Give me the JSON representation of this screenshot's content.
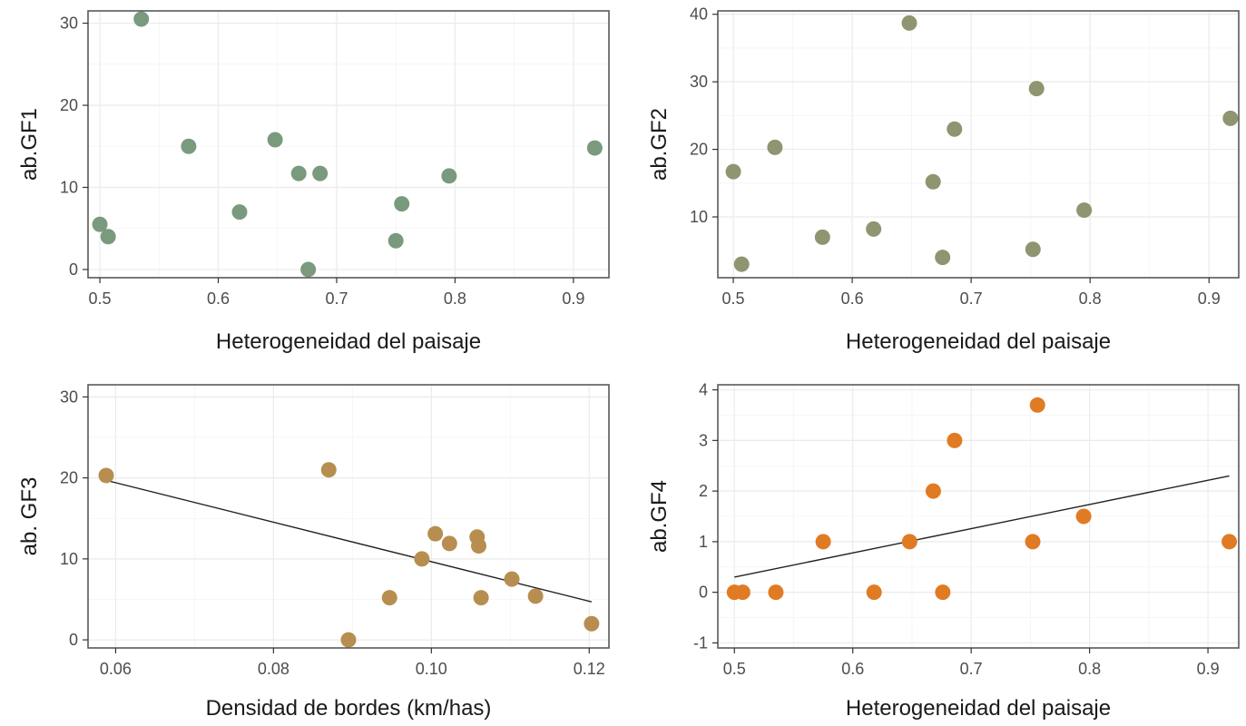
{
  "chart_data": [
    {
      "type": "scatter",
      "title": "",
      "xlabel": "Heterogeneidad del paisaje",
      "ylabel": "ab.GF1",
      "xlim": [
        0.49,
        0.93
      ],
      "ylim": [
        -1,
        31.5
      ],
      "xticks": [
        0.5,
        0.6,
        0.7,
        0.8,
        0.9
      ],
      "xtick_labels": [
        "0.5",
        "0.6",
        "0.7",
        "0.8",
        "0.9"
      ],
      "yticks": [
        0,
        10,
        20,
        30
      ],
      "ytick_labels": [
        "0",
        "10",
        "20",
        "30"
      ],
      "grid": true,
      "point_color": "#7a9a7e",
      "trend_line": null,
      "points": [
        {
          "x": 0.5,
          "y": 5.5
        },
        {
          "x": 0.507,
          "y": 4
        },
        {
          "x": 0.535,
          "y": 30.5
        },
        {
          "x": 0.575,
          "y": 15
        },
        {
          "x": 0.618,
          "y": 7
        },
        {
          "x": 0.648,
          "y": 15.8
        },
        {
          "x": 0.668,
          "y": 11.7
        },
        {
          "x": 0.676,
          "y": 0
        },
        {
          "x": 0.686,
          "y": 11.7
        },
        {
          "x": 0.75,
          "y": 3.5
        },
        {
          "x": 0.755,
          "y": 8
        },
        {
          "x": 0.795,
          "y": 11.4
        },
        {
          "x": 0.918,
          "y": 14.8
        }
      ]
    },
    {
      "type": "scatter",
      "title": "",
      "xlabel": "Heterogeneidad del paisaje",
      "ylabel": "ab.GF2",
      "xlim": [
        0.487,
        0.925
      ],
      "ylim": [
        1,
        40.5
      ],
      "xticks": [
        0.5,
        0.6,
        0.7,
        0.8,
        0.9
      ],
      "xtick_labels": [
        "0.5",
        "0.6",
        "0.7",
        "0.8",
        "0.9"
      ],
      "yticks": [
        10,
        20,
        30,
        40
      ],
      "ytick_labels": [
        "10",
        "20",
        "30",
        "40"
      ],
      "grid": true,
      "point_color": "#8e9570",
      "trend_line": null,
      "points": [
        {
          "x": 0.5,
          "y": 16.7
        },
        {
          "x": 0.507,
          "y": 3
        },
        {
          "x": 0.535,
          "y": 20.3
        },
        {
          "x": 0.575,
          "y": 7
        },
        {
          "x": 0.618,
          "y": 8.2
        },
        {
          "x": 0.648,
          "y": 38.7
        },
        {
          "x": 0.668,
          "y": 15.2
        },
        {
          "x": 0.676,
          "y": 4
        },
        {
          "x": 0.686,
          "y": 23
        },
        {
          "x": 0.752,
          "y": 5.2
        },
        {
          "x": 0.755,
          "y": 29
        },
        {
          "x": 0.795,
          "y": 11
        },
        {
          "x": 0.918,
          "y": 24.6
        }
      ]
    },
    {
      "type": "scatter",
      "title": "",
      "xlabel": "Densidad de bordes (km/has)",
      "ylabel": "ab. GF3",
      "xlim": [
        0.0565,
        0.1225
      ],
      "ylim": [
        -1,
        31.5
      ],
      "xticks": [
        0.06,
        0.08,
        0.1,
        0.12
      ],
      "xtick_labels": [
        "0.06",
        "0.08",
        "0.10",
        "0.12"
      ],
      "yticks": [
        0,
        10,
        20,
        30
      ],
      "ytick_labels": [
        "0",
        "10",
        "20",
        "30"
      ],
      "grid": true,
      "point_color": "#b78e4f",
      "trend_line": {
        "x": [
          0.0588,
          0.1203
        ],
        "y": [
          19.7,
          4.7
        ]
      },
      "points": [
        {
          "x": 0.0588,
          "y": 20.3
        },
        {
          "x": 0.087,
          "y": 21
        },
        {
          "x": 0.0895,
          "y": 0
        },
        {
          "x": 0.0947,
          "y": 5.2
        },
        {
          "x": 0.0988,
          "y": 10
        },
        {
          "x": 0.1005,
          "y": 13.1
        },
        {
          "x": 0.1023,
          "y": 11.9
        },
        {
          "x": 0.1058,
          "y": 12.7
        },
        {
          "x": 0.106,
          "y": 11.6
        },
        {
          "x": 0.1063,
          "y": 5.2
        },
        {
          "x": 0.1102,
          "y": 7.5
        },
        {
          "x": 0.1132,
          "y": 5.4
        },
        {
          "x": 0.1203,
          "y": 2
        }
      ]
    },
    {
      "type": "scatter",
      "title": "",
      "xlabel": "Heterogeneidad del paisaje",
      "ylabel": "ab.GF4",
      "xlim": [
        0.486,
        0.926
      ],
      "ylim": [
        -1.1,
        4.1
      ],
      "xticks": [
        0.5,
        0.6,
        0.7,
        0.8,
        0.9
      ],
      "xtick_labels": [
        "0.5",
        "0.6",
        "0.7",
        "0.8",
        "0.9"
      ],
      "yticks": [
        -1,
        0,
        1,
        2,
        3,
        4
      ],
      "ytick_labels": [
        "-1",
        "0",
        "1",
        "2",
        "3",
        "4"
      ],
      "grid": true,
      "point_color": "#e07b24",
      "trend_line": {
        "x": [
          0.5,
          0.918
        ],
        "y": [
          0.3,
          2.3
        ]
      },
      "points": [
        {
          "x": 0.5,
          "y": 0
        },
        {
          "x": 0.507,
          "y": 0
        },
        {
          "x": 0.535,
          "y": 0
        },
        {
          "x": 0.575,
          "y": 1
        },
        {
          "x": 0.618,
          "y": 0
        },
        {
          "x": 0.648,
          "y": 1
        },
        {
          "x": 0.668,
          "y": 2
        },
        {
          "x": 0.676,
          "y": 0
        },
        {
          "x": 0.686,
          "y": 3
        },
        {
          "x": 0.752,
          "y": 1
        },
        {
          "x": 0.756,
          "y": 3.7
        },
        {
          "x": 0.795,
          "y": 1.5
        },
        {
          "x": 0.918,
          "y": 1
        }
      ]
    }
  ]
}
